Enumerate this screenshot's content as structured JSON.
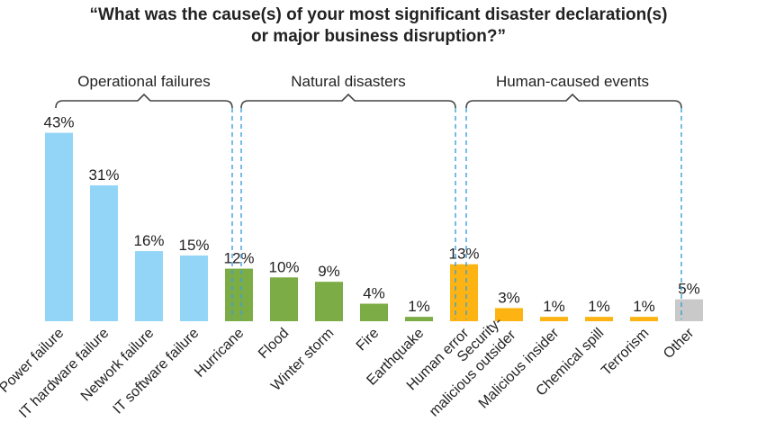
{
  "chart_data": {
    "type": "bar",
    "title_lines": [
      "“What was the cause(s) of your most significant disaster declaration(s)",
      "or major business disruption?”"
    ],
    "groups": [
      {
        "name": "Operational failures",
        "color": "#93d5f7"
      },
      {
        "name": "Natural disasters",
        "color": "#7cac45"
      },
      {
        "name": "Human-caused events",
        "color": "#fdb413"
      },
      {
        "name": "",
        "color": "#c9c9c9"
      }
    ],
    "categories": [
      [
        "Power failure"
      ],
      [
        "IT hardware failure"
      ],
      [
        "Network failure"
      ],
      [
        "IT software failure"
      ],
      [
        "Hurricane"
      ],
      [
        "Flood"
      ],
      [
        "Winter storm"
      ],
      [
        "Fire"
      ],
      [
        "Earthquake"
      ],
      [
        "Human error"
      ],
      [
        "Security-",
        "malicious outsider"
      ],
      [
        "Malicious insider"
      ],
      [
        "Chemical spill"
      ],
      [
        "Terrorism"
      ],
      [
        "Other"
      ]
    ],
    "values": [
      43,
      31,
      16,
      15,
      12,
      10,
      9,
      4,
      1,
      13,
      3,
      1,
      1,
      1,
      5
    ],
    "data_labels": [
      "43%",
      "31%",
      "16%",
      "15%",
      "12%",
      "10%",
      "9%",
      "4%",
      "1%",
      "13%",
      "3%",
      "1%",
      "1%",
      "1%",
      "5%"
    ],
    "group_index": [
      0,
      0,
      0,
      0,
      1,
      1,
      1,
      1,
      1,
      2,
      2,
      2,
      2,
      2,
      3
    ],
    "bracket_color": "#444444",
    "divider_color": "#3aa0dc"
  }
}
